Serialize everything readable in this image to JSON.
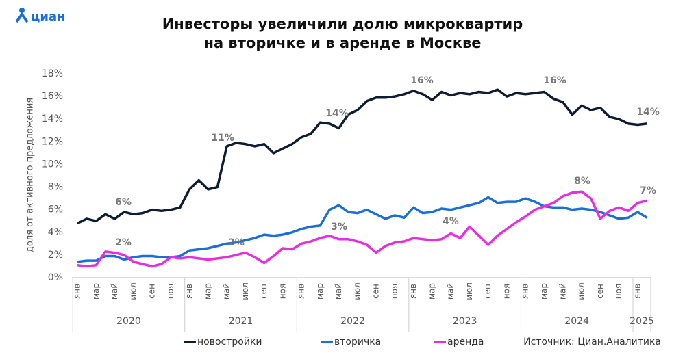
{
  "logo": "циан",
  "chart_data": {
    "type": "line",
    "title": [
      "Инвесторы увеличили долю микроквартир",
      "на вторичке и в аренде в Москве"
    ],
    "y_label": "доля от активного предложения",
    "source": "Источник: Циан.Аналитика",
    "categories": [
      "янв",
      null,
      "мар",
      null,
      "май",
      null,
      "июл",
      null,
      "сен",
      null,
      "ноя",
      null,
      "янв",
      null,
      "мар",
      null,
      "май",
      null,
      "июл",
      null,
      "сен",
      null,
      "ноя",
      null,
      "янв",
      null,
      "мар",
      null,
      "май",
      null,
      "июл",
      null,
      "сен",
      null,
      "ноя",
      null,
      "янв",
      null,
      "мар",
      null,
      "май",
      null,
      "июл",
      null,
      "сен",
      null,
      "ноя",
      null,
      "янв",
      null,
      "мар",
      null,
      "май",
      null,
      "июл",
      null,
      "сен",
      null,
      "ноя",
      null,
      "янв",
      null
    ],
    "years": [
      "2020",
      "2021",
      "2022",
      "2023",
      "2024",
      "2025"
    ],
    "ylim": [
      0,
      18
    ],
    "yticks": [
      {
        "value": 0,
        "label": "0%"
      },
      {
        "value": 2,
        "label": "2%"
      },
      {
        "value": 4,
        "label": "4%"
      },
      {
        "value": 6,
        "label": "6%"
      },
      {
        "value": 8,
        "label": "8%"
      },
      {
        "value": 10,
        "label": "10%"
      },
      {
        "value": 12,
        "label": "12%"
      },
      {
        "value": 14,
        "label": "14%"
      },
      {
        "value": 16,
        "label": "16%"
      },
      {
        "value": 18,
        "label": "18%"
      }
    ],
    "series": [
      {
        "name": "новостройки",
        "color": "#0d1b33",
        "values": [
          4.8,
          5.2,
          5.0,
          5.6,
          5.2,
          5.8,
          5.6,
          5.7,
          6.0,
          5.9,
          6.0,
          6.2,
          7.8,
          8.6,
          7.8,
          8.0,
          11.6,
          11.9,
          11.8,
          11.6,
          11.8,
          11.0,
          11.4,
          11.8,
          12.4,
          12.7,
          13.7,
          13.6,
          13.2,
          14.4,
          14.8,
          15.6,
          15.9,
          15.9,
          16.0,
          16.2,
          16.5,
          16.2,
          15.7,
          16.4,
          16.1,
          16.3,
          16.2,
          16.4,
          16.3,
          16.6,
          16.0,
          16.3,
          16.2,
          16.3,
          16.4,
          15.8,
          15.5,
          14.4,
          15.2,
          14.8,
          15.0,
          14.2,
          14.0,
          13.6,
          13.5,
          13.6
        ]
      },
      {
        "name": "вторичка",
        "color": "#1a6fd6",
        "values": [
          1.4,
          1.5,
          1.5,
          1.9,
          1.9,
          1.6,
          1.8,
          1.9,
          1.9,
          1.8,
          1.8,
          1.9,
          2.4,
          2.5,
          2.6,
          2.8,
          3.0,
          3.1,
          3.3,
          3.5,
          3.8,
          3.7,
          3.8,
          4.0,
          4.3,
          4.5,
          4.6,
          6.0,
          6.4,
          5.8,
          5.7,
          6.0,
          5.6,
          5.2,
          5.5,
          5.3,
          6.2,
          5.7,
          5.8,
          6.1,
          6.0,
          6.2,
          6.4,
          6.6,
          7.1,
          6.6,
          6.7,
          6.7,
          7.0,
          6.7,
          6.3,
          6.2,
          6.2,
          6.0,
          6.1,
          6.0,
          5.8,
          5.5,
          5.2,
          5.3,
          5.8,
          5.3
        ]
      },
      {
        "name": "аренда",
        "color": "#e62ee0",
        "values": [
          1.1,
          1.0,
          1.1,
          2.3,
          2.2,
          2.0,
          1.4,
          1.2,
          1.0,
          1.2,
          1.8,
          1.7,
          1.8,
          1.7,
          1.6,
          1.7,
          1.8,
          2.0,
          2.2,
          1.8,
          1.3,
          1.9,
          2.6,
          2.5,
          3.0,
          3.2,
          3.5,
          3.7,
          3.4,
          3.4,
          3.2,
          2.9,
          2.2,
          2.8,
          3.1,
          3.2,
          3.5,
          3.4,
          3.3,
          3.4,
          3.9,
          3.5,
          4.5,
          3.7,
          2.9,
          3.7,
          4.3,
          4.9,
          5.4,
          6.0,
          6.3,
          6.6,
          7.2,
          7.5,
          7.6,
          7.0,
          5.2,
          5.9,
          6.2,
          5.9,
          6.6,
          6.8
        ]
      }
    ],
    "annotations": [
      "6%",
      "2%",
      "11%",
      "2%",
      "14%",
      "3%",
      "16%",
      "4%",
      "16%",
      "8%",
      "14%",
      "7%"
    ]
  }
}
